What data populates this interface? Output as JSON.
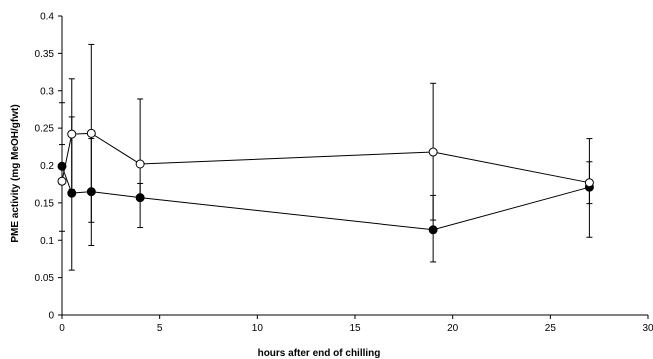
{
  "chart_data": {
    "type": "scatter",
    "title": "",
    "xlabel": "hours after end of chilling",
    "ylabel": "PME activity (mg MeOH/gfwt)",
    "xlim": [
      0,
      30
    ],
    "ylim": [
      0,
      0.4
    ],
    "xticks": [
      0,
      5,
      10,
      15,
      20,
      25,
      30
    ],
    "yticks": [
      0,
      0.05,
      0.1,
      0.15,
      0.2,
      0.25,
      0.3,
      0.35,
      0.4
    ],
    "xtick_labels": [
      "0",
      "5",
      "10",
      "15",
      "20",
      "25",
      "30"
    ],
    "ytick_labels": [
      "0",
      "0.05",
      "0.1",
      "0.15",
      "0.2",
      "0.25",
      "0.3",
      "0.35",
      "0.4"
    ],
    "grid": false,
    "legend": "none",
    "series": [
      {
        "marker": "filled-circle",
        "color": "#000000",
        "x": [
          0,
          0.5,
          1.5,
          4,
          19,
          27
        ],
        "y": [
          0.199,
          0.163,
          0.165,
          0.157,
          0.114,
          0.171
        ],
        "err_low": [
          0.175,
          0.06,
          0.093,
          0.117,
          0.071,
          0.149
        ],
        "err_high": [
          0.228,
          0.265,
          0.236,
          0.176,
          0.16,
          0.205
        ]
      },
      {
        "marker": "open-circle",
        "color": "#000000",
        "x": [
          0,
          0.5,
          1.5,
          4,
          19,
          27
        ],
        "y": [
          0.179,
          0.242,
          0.243,
          0.202,
          0.218,
          0.177
        ],
        "err_low": [
          0.112,
          0.168,
          0.124,
          0.16,
          0.127,
          0.104
        ],
        "err_high": [
          0.284,
          0.316,
          0.362,
          0.289,
          0.31,
          0.236
        ]
      }
    ]
  }
}
